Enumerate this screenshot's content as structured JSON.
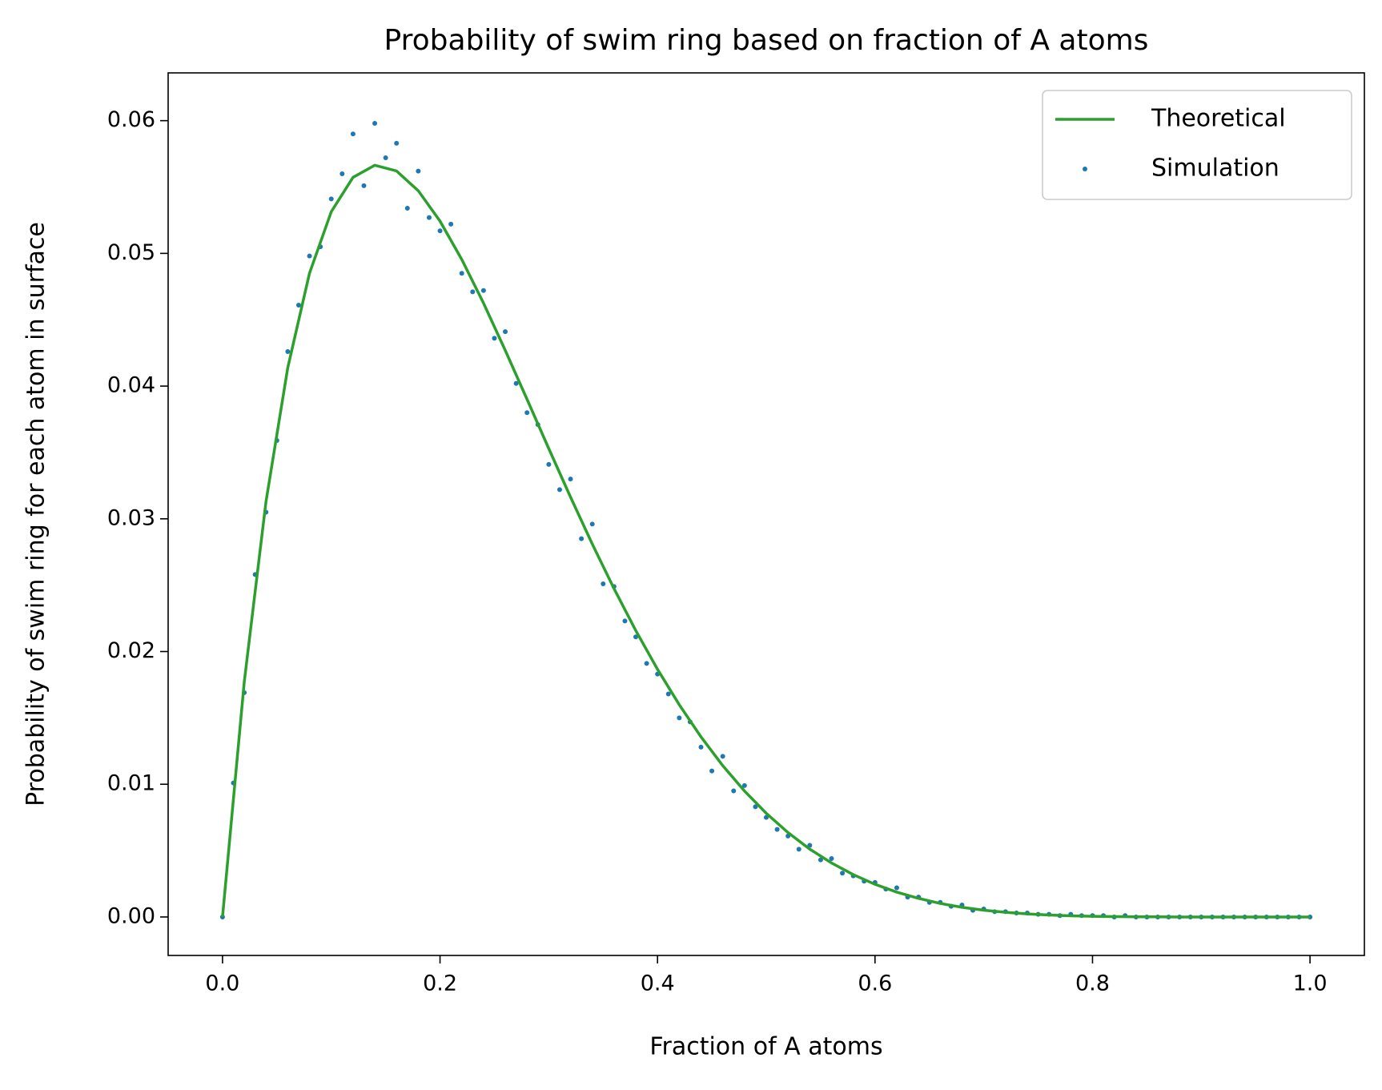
{
  "chart_data": {
    "type": "line+scatter",
    "title": "Probability of swim ring based on fraction of A atoms",
    "x_label": "Fraction of A atoms",
    "y_label": "Probability of swim ring for each atom in surface",
    "xlim": [
      -0.05,
      1.05
    ],
    "ylim": [
      -0.0029,
      0.0636
    ],
    "xticks": [
      {
        "value": 0,
        "label": "0.0"
      },
      0.2,
      0.4,
      0.6,
      0.8,
      {
        "value": 1,
        "label": "1.0"
      }
    ],
    "yticks": [
      {
        "value": 0,
        "label": "0.00"
      },
      {
        "value": 0.01,
        "label": "0.01"
      },
      {
        "value": 0.02,
        "label": "0.02"
      },
      {
        "value": 0.03,
        "label": "0.03"
      },
      {
        "value": 0.04,
        "label": "0.04"
      },
      {
        "value": 0.05,
        "label": "0.05"
      },
      {
        "value": 0.06,
        "label": "0.06"
      }
    ],
    "legend": "upper right",
    "series": [
      {
        "name": "Theoretical",
        "kind": "line",
        "color": "#2ca02c",
        "x": [
          0,
          0.02,
          0.04,
          0.06,
          0.08,
          0.1,
          0.12,
          0.14,
          0.16,
          0.18,
          0.2,
          0.22,
          0.24,
          0.26,
          0.28,
          0.3,
          0.32,
          0.34,
          0.36,
          0.38,
          0.4,
          0.42,
          0.44,
          0.46,
          0.48,
          0.5,
          0.52,
          0.54,
          0.56,
          0.58,
          0.6,
          0.62,
          0.64,
          0.66,
          0.68,
          0.7,
          0.72,
          0.74,
          0.76,
          0.78,
          0.8,
          0.82,
          0.84,
          0.86,
          0.88,
          0.9,
          0.92,
          0.94,
          0.96,
          0.98,
          1
        ],
        "values": [
          0,
          0.01772,
          0.03131,
          0.04139,
          0.04851,
          0.05314,
          0.05573,
          0.05664,
          0.05621,
          0.05472,
          0.05243,
          0.04954,
          0.04625,
          0.04269,
          0.03901,
          0.03529,
          0.03164,
          0.0281,
          0.02474,
          0.02158,
          0.01866,
          0.01599,
          0.01357,
          0.0114,
          0.00949,
          0.00781,
          0.00636,
          0.00511,
          0.00407,
          0.00319,
          0.00246,
          0.00187,
          0.0014,
          0.00102,
          0.00073,
          0.00051,
          0.00035,
          0.00023,
          0.00015,
          9e-05,
          5e-05,
          3e-05,
          1e-05,
          1e-05,
          0,
          0,
          0,
          0,
          0,
          0,
          0
        ]
      },
      {
        "name": "Simulation",
        "kind": "scatter",
        "color": "#1f77b4",
        "x": [
          0,
          0.01,
          0.02,
          0.03,
          0.04,
          0.05,
          0.06,
          0.07,
          0.08,
          0.09,
          0.1,
          0.11,
          0.12,
          0.13,
          0.14,
          0.15,
          0.16,
          0.17,
          0.18,
          0.19,
          0.2,
          0.21,
          0.22,
          0.23,
          0.24,
          0.25,
          0.26,
          0.27,
          0.28,
          0.29,
          0.3,
          0.31,
          0.32,
          0.33,
          0.34,
          0.35,
          0.36,
          0.37,
          0.38,
          0.39,
          0.4,
          0.41,
          0.42,
          0.43,
          0.44,
          0.45,
          0.46,
          0.47,
          0.48,
          0.49,
          0.5,
          0.51,
          0.52,
          0.53,
          0.54,
          0.55,
          0.56,
          0.57,
          0.58,
          0.59,
          0.6,
          0.61,
          0.62,
          0.63,
          0.64,
          0.65,
          0.66,
          0.67,
          0.68,
          0.69,
          0.7,
          0.71,
          0.72,
          0.73,
          0.74,
          0.75,
          0.76,
          0.77,
          0.78,
          0.79,
          0.8,
          0.81,
          0.82,
          0.83,
          0.84,
          0.85,
          0.86,
          0.87,
          0.88,
          0.89,
          0.9,
          0.91,
          0.92,
          0.93,
          0.94,
          0.95,
          0.96,
          0.97,
          0.98,
          0.99,
          1
        ],
        "values": [
          0,
          0.0101,
          0.0169,
          0.0258,
          0.0305,
          0.0359,
          0.0426,
          0.0461,
          0.0498,
          0.0505,
          0.0541,
          0.056,
          0.059,
          0.0551,
          0.0598,
          0.0572,
          0.0583,
          0.0534,
          0.0562,
          0.0527,
          0.0517,
          0.0522,
          0.0485,
          0.0471,
          0.0472,
          0.0436,
          0.0441,
          0.0402,
          0.038,
          0.0371,
          0.0341,
          0.0322,
          0.033,
          0.0285,
          0.0296,
          0.0251,
          0.0249,
          0.0223,
          0.0211,
          0.0191,
          0.0183,
          0.0168,
          0.015,
          0.0147,
          0.0128,
          0.011,
          0.0121,
          0.0095,
          0.0099,
          0.0083,
          0.0075,
          0.0066,
          0.0061,
          0.0051,
          0.0054,
          0.0043,
          0.0044,
          0.0033,
          0.0031,
          0.0027,
          0.0026,
          0.0021,
          0.0022,
          0.0015,
          0.0015,
          0.0011,
          0.0011,
          0.0008,
          0.0009,
          0.0005,
          0.0006,
          0.0004,
          0.0004,
          0.0003,
          0.0003,
          0.0002,
          0.0002,
          0.0001,
          0.0002,
          0.0001,
          0.0001,
          0.0001,
          0,
          0.0001,
          0,
          0,
          0,
          0,
          0,
          0,
          0,
          0,
          0,
          0,
          0,
          0,
          0,
          0,
          0,
          0,
          0
        ]
      }
    ]
  }
}
